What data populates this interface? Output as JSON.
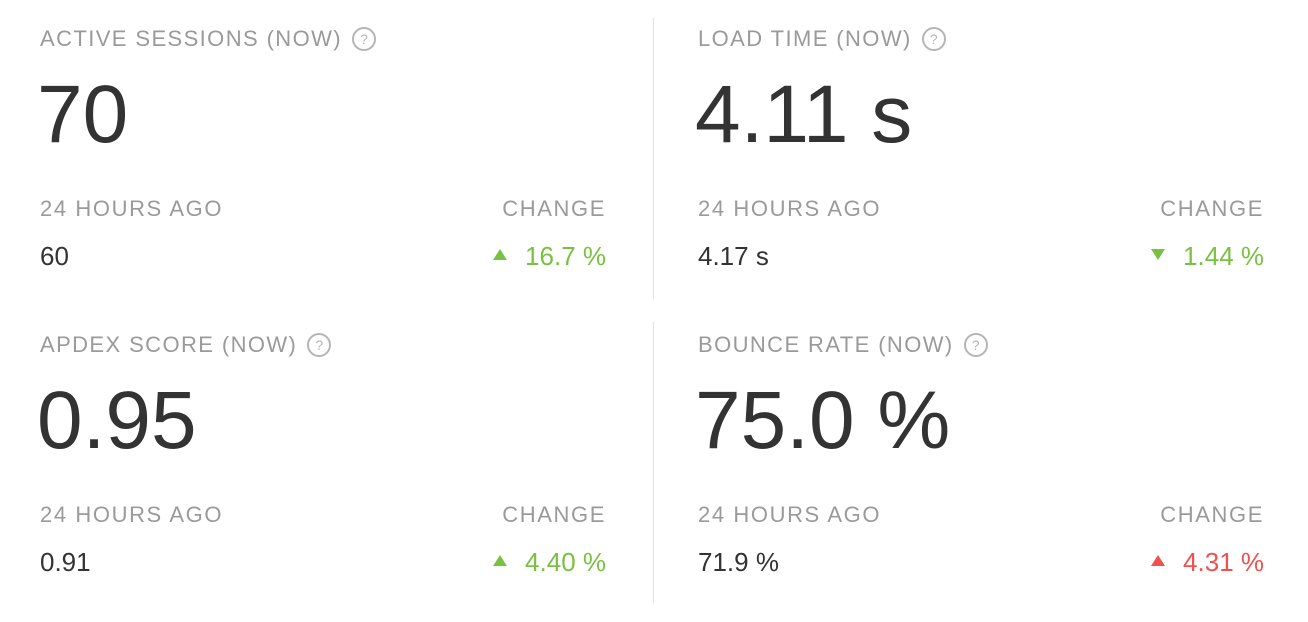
{
  "cards": [
    {
      "title": "ACTIVE SESSIONS (NOW)",
      "value": "70",
      "previous_label": "24 HOURS AGO",
      "previous_value": "60",
      "change_label": "CHANGE",
      "change_value": "16.7 %",
      "trend": "up",
      "trend_color": "#7ac143"
    },
    {
      "title": "LOAD TIME (NOW)",
      "value": "4.11 s",
      "previous_label": "24 HOURS AGO",
      "previous_value": "4.17 s",
      "change_label": "CHANGE",
      "change_value": "1.44 %",
      "trend": "down",
      "trend_color": "#7ac143"
    },
    {
      "title": "APDEX SCORE (NOW)",
      "value": "0.95",
      "previous_label": "24 HOURS AGO",
      "previous_value": "0.91",
      "change_label": "CHANGE",
      "change_value": "4.40 %",
      "trend": "up",
      "trend_color": "#7ac143"
    },
    {
      "title": "BOUNCE RATE (NOW)",
      "value": "75.0 %",
      "previous_label": "24 HOURS AGO",
      "previous_value": "71.9 %",
      "change_label": "CHANGE",
      "change_value": "4.31 %",
      "trend": "up",
      "trend_color": "#f05050"
    }
  ]
}
